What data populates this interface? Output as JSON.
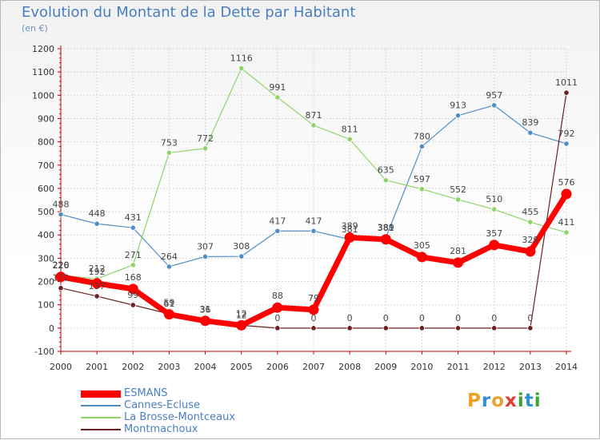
{
  "header": {
    "title": "Evolution du Montant de la Dette par Habitant",
    "unit": "(en €)"
  },
  "logo": {
    "letters": [
      "P",
      "r",
      "o",
      "x",
      "i",
      "t",
      "i"
    ],
    "colors": [
      "#f0a020",
      "#2f8fd0",
      "#e8a030",
      "#e03c31",
      "#3aa535",
      "#2f8fd0",
      "#3aa535"
    ]
  },
  "chart_data": {
    "type": "line",
    "x": [
      2000,
      2001,
      2002,
      2003,
      2004,
      2005,
      2006,
      2007,
      2008,
      2009,
      2010,
      2011,
      2012,
      2013,
      2014
    ],
    "ylim": [
      -100,
      1200
    ],
    "yticks": [
      -100,
      0,
      100,
      200,
      300,
      400,
      500,
      600,
      700,
      800,
      900,
      1000,
      1100,
      1200
    ],
    "grid": true,
    "legend_position": "bottom-left",
    "series": [
      {
        "name": "ESMANS",
        "color": "#ff0000",
        "values": [
          220,
          192,
          168,
          59,
          31,
          12,
          88,
          79,
          389,
          381,
          305,
          281,
          357,
          329,
          576
        ]
      },
      {
        "name": "Cannes-Ecluse",
        "color": "#4f8ec9",
        "values": [
          488,
          448,
          431,
          264,
          307,
          308,
          417,
          417,
          381,
          389,
          780,
          913,
          957,
          839,
          792
        ]
      },
      {
        "name": "La Brosse-Montceaux",
        "color": "#8fd46a",
        "values": [
          226,
          212,
          271,
          753,
          772,
          1116,
          991,
          871,
          811,
          635,
          597,
          552,
          510,
          455,
          411
        ]
      },
      {
        "name": "Montmachoux",
        "color": "#6e2020",
        "values": [
          172,
          137,
          99,
          61,
          36,
          12,
          0,
          0,
          0,
          0,
          0,
          0,
          0,
          0,
          1011
        ]
      }
    ]
  }
}
